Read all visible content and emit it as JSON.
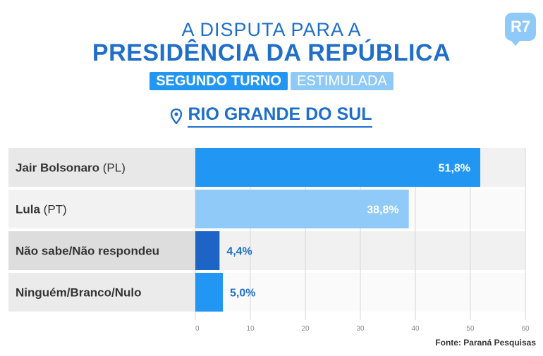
{
  "logo": "R7",
  "title_line1": "A DISPUTA PARA A",
  "title_line2": "PRESIDÊNCIA DA REPÚBLICA",
  "badge_round": "SEGUNDO TURNO",
  "badge_type": "ESTIMULADA",
  "region": "RIO GRANDE DO SUL",
  "source": "Fonte: Paraná Pesquisas",
  "colors": {
    "title": "#1f6fc8",
    "bar_bolsonaro": "#2196f3",
    "bar_lula": "#90caf9",
    "bar_nao_sabe": "#1e63c6",
    "bar_ninguem": "#2196f3"
  },
  "chart_data": {
    "type": "bar",
    "orientation": "horizontal",
    "categories": [
      {
        "name": "Jair Bolsonaro",
        "party": " (PL)"
      },
      {
        "name": "Lula",
        "party": " (PT)"
      },
      {
        "name": "Não sabe/Não respondeu",
        "party": ""
      },
      {
        "name": "Ninguém/Branco/Nulo",
        "party": ""
      }
    ],
    "values": [
      51.8,
      38.8,
      4.4,
      5.0
    ],
    "value_labels": [
      "51,8%",
      "38,8%",
      "4,4%",
      "5,0%"
    ],
    "xlim": [
      0,
      60
    ],
    "xticks": [
      0,
      10,
      20,
      30,
      40,
      50,
      60
    ],
    "grid": true
  }
}
